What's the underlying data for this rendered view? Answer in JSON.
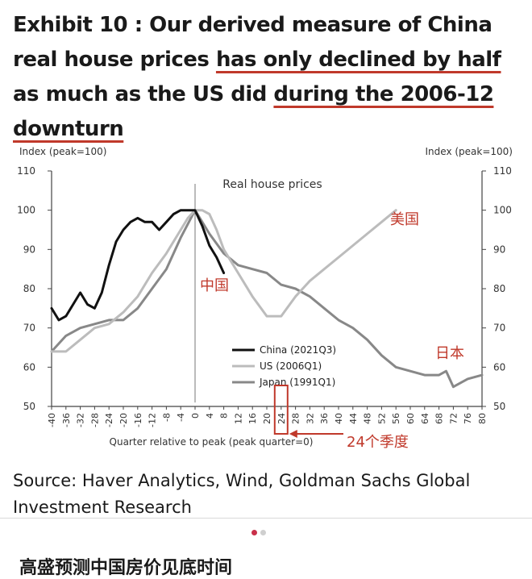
{
  "title": {
    "part1": "Exhibit 10 : Our derived measure of China real house prices ",
    "highlight1": "has only declined by half",
    "part2": " as much as the US did ",
    "highlight2": "during the 2006-12 downturn"
  },
  "chart_data": {
    "type": "line",
    "title": "Real house prices",
    "ylabel_left": "Index (peak=100)",
    "ylabel_right": "Index (peak=100)",
    "xlabel": "Quarter relative to peak (peak quarter=0)",
    "xlim": [
      -40,
      80
    ],
    "ylim": [
      50,
      110
    ],
    "yticks": [
      50,
      60,
      70,
      80,
      90,
      100,
      110
    ],
    "xticks": [
      -40,
      -36,
      -32,
      -28,
      -24,
      -20,
      -16,
      -12,
      -8,
      -4,
      0,
      4,
      8,
      12,
      16,
      20,
      24,
      28,
      32,
      36,
      40,
      44,
      48,
      52,
      56,
      60,
      64,
      68,
      72,
      76,
      80
    ],
    "legend_position": "bottom-center",
    "series": [
      {
        "name": "China (2021Q3)",
        "color": "#111111",
        "x": [
          -40,
          -38,
          -36,
          -34,
          -32,
          -30,
          -28,
          -26,
          -24,
          -22,
          -20,
          -18,
          -16,
          -14,
          -12,
          -10,
          -8,
          -6,
          -4,
          -2,
          0,
          2,
          4,
          6,
          8
        ],
        "y": [
          75,
          72,
          73,
          76,
          79,
          76,
          75,
          79,
          86,
          92,
          95,
          97,
          98,
          97,
          97,
          95,
          97,
          99,
          100,
          100,
          100,
          96,
          91,
          88,
          84
        ]
      },
      {
        "name": "US (2006Q1)",
        "color": "#bcbcbc",
        "x": [
          -40,
          -36,
          -32,
          -28,
          -24,
          -20,
          -16,
          -12,
          -8,
          -4,
          -2,
          0,
          2,
          4,
          6,
          8,
          12,
          16,
          20,
          24,
          28,
          32,
          36,
          40,
          44,
          48,
          52,
          56
        ],
        "y": [
          64,
          64,
          67,
          70,
          71,
          74,
          78,
          84,
          89,
          95,
          98,
          100,
          100,
          99,
          95,
          90,
          84,
          78,
          73,
          73,
          78,
          82,
          85,
          88,
          91,
          94,
          97,
          100
        ]
      },
      {
        "name": "Japan (1991Q1)",
        "color": "#888888",
        "x": [
          -40,
          -36,
          -32,
          -28,
          -24,
          -20,
          -16,
          -12,
          -8,
          -4,
          0,
          4,
          8,
          12,
          16,
          20,
          24,
          28,
          32,
          36,
          40,
          44,
          48,
          52,
          56,
          60,
          64,
          68,
          70,
          72,
          76,
          80
        ],
        "y": [
          64,
          68,
          70,
          71,
          72,
          72,
          75,
          80,
          85,
          93,
          100,
          94,
          89,
          86,
          85,
          84,
          81,
          80,
          78,
          75,
          72,
          70,
          67,
          63,
          60,
          59,
          58,
          58,
          59,
          55,
          57,
          58
        ]
      }
    ],
    "annotations": [
      {
        "text": "中国",
        "color": "#c0392b"
      },
      {
        "text": "美国",
        "color": "#c0392b"
      },
      {
        "text": "日本",
        "color": "#c0392b"
      },
      {
        "text": "24个季度",
        "color": "#c0392b",
        "x": 24
      }
    ]
  },
  "source": "Source: Haver Analytics, Wind, Goldman Sachs Global Investment Research",
  "pager": {
    "total": 2,
    "active": 0
  },
  "footer_text": "高盛预测中国房价见底时间",
  "colors": {
    "accent": "#c0392b",
    "pager_active": "#c9304a"
  }
}
